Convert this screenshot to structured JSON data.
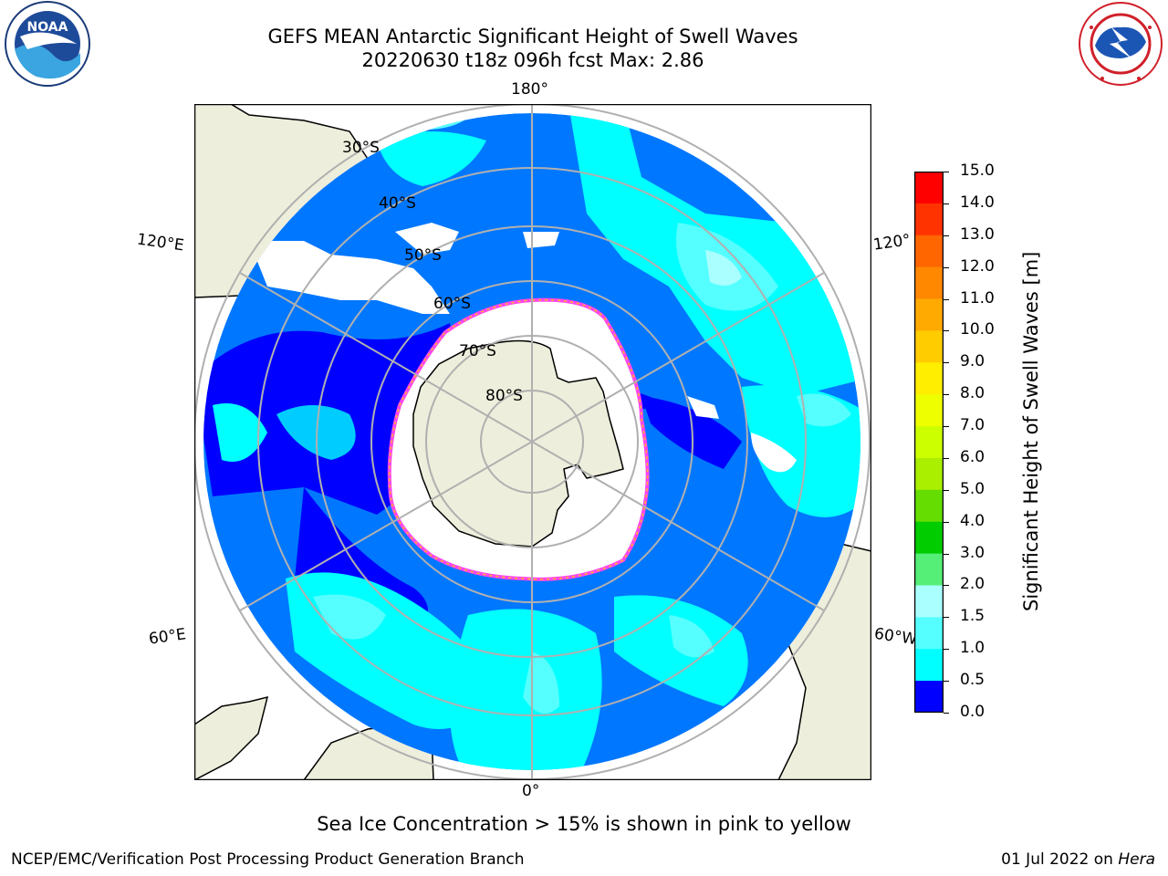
{
  "header": {
    "title_line1": "GEFS MEAN Antarctic Significant Height of Swell Waves",
    "title_line2": "20220630 t18z 096h fcst   Max: 2.86"
  },
  "logos": {
    "left": {
      "icon": "noaa-logo",
      "text": "NOAA"
    },
    "right": {
      "icon": "national-weather-service-logo"
    }
  },
  "map": {
    "projection": "south-polar-stereographic",
    "longitude_labels": {
      "top": "180°",
      "bottom": "0°",
      "left_upper": "120°E",
      "left_lower": "60°E",
      "right_upper": "120°",
      "right_lower": "60°W"
    },
    "latitude_labels": [
      "30°S",
      "40°S",
      "50°S",
      "60°S",
      "70°S",
      "80°S"
    ],
    "colors": {
      "land": "#eeeedc",
      "ice": "#ffffff",
      "grid": "#b0b0b0",
      "ice_edge": "#ff44ee"
    }
  },
  "colorbar": {
    "label": "Significant Height of Swell Waves [m]",
    "ticks": [
      "15.0",
      "14.0",
      "13.0",
      "12.0",
      "11.0",
      "10.0",
      "9.0",
      "8.0",
      "7.0",
      "6.0",
      "5.0",
      "4.0",
      "3.0",
      "2.0",
      "1.5",
      "1.0",
      "0.5",
      "0.0"
    ],
    "colors": [
      "#ff0000",
      "#ff3300",
      "#ff6600",
      "#ff8800",
      "#ffaa00",
      "#ffcc00",
      "#ffee00",
      "#eeff00",
      "#ccff00",
      "#aaee00",
      "#66dd00",
      "#00cc00",
      "#55ee77",
      "#aaffff",
      "#55ffff",
      "#00ffff",
      "#0077ff",
      "#0000ff"
    ]
  },
  "footer": {
    "note": "Sea Ice Concentration > 15% is shown in pink to yellow",
    "credit": "NCEP/EMC/Verification Post Processing Product Generation Branch",
    "date": "01 Jul 2022 on",
    "machine": "Hera"
  }
}
